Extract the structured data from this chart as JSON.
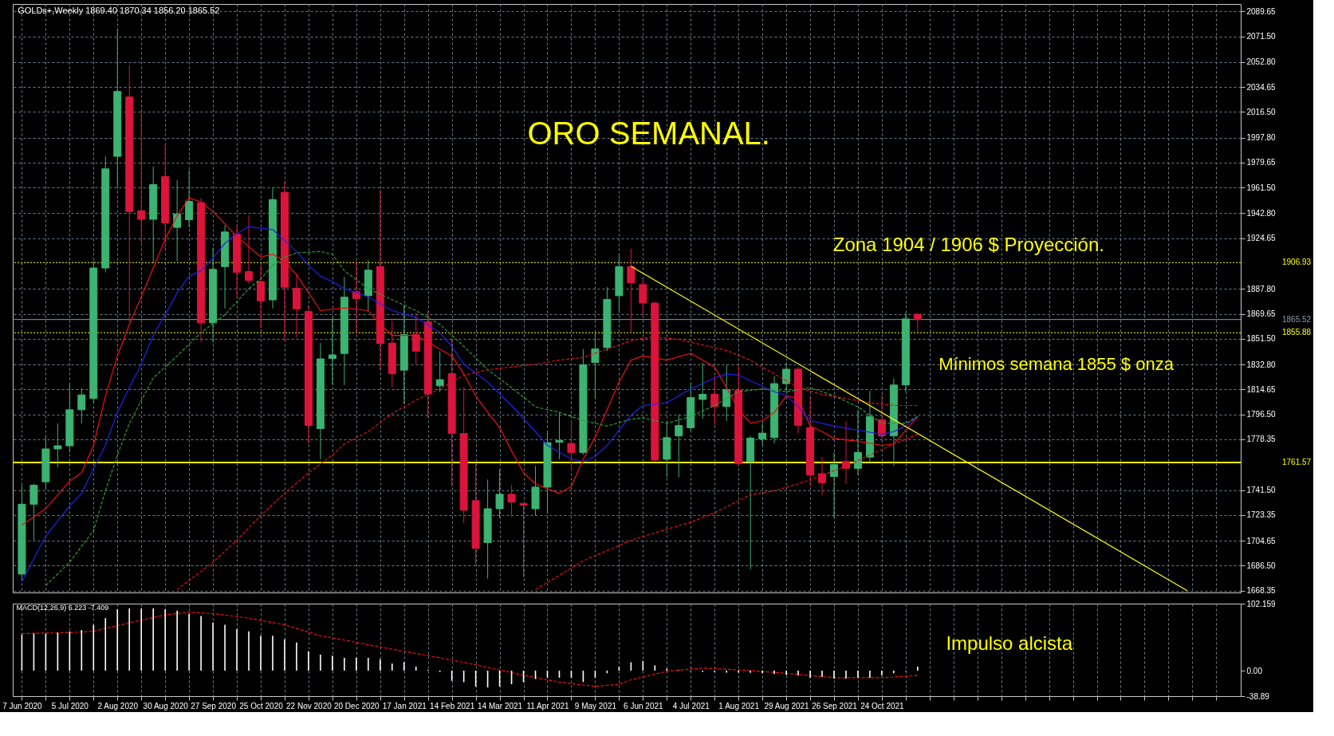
{
  "chart_data": [
    {
      "type": "candlestick",
      "title": "ORO SEMANAL.",
      "annotations": [
        "GOLDs+,Weekly  1869.40 1870.34 1856.20 1865.52",
        "Zona 1904 / 1906  $ Proyección.",
        "Mínimos semana 1855 $ onza"
      ],
      "x": [
        "2020-06-07",
        "2020-06-14",
        "2020-06-21",
        "2020-06-28",
        "2020-07-05",
        "2020-07-12",
        "2020-07-19",
        "2020-07-26",
        "2020-08-02",
        "2020-08-09",
        "2020-08-16",
        "2020-08-23",
        "2020-08-30",
        "2020-09-06",
        "2020-09-13",
        "2020-09-20",
        "2020-09-27",
        "2020-10-04",
        "2020-10-11",
        "2020-10-18",
        "2020-10-25",
        "2020-11-01",
        "2020-11-08",
        "2020-11-15",
        "2020-11-22",
        "2020-11-29",
        "2020-12-06",
        "2020-12-13",
        "2020-12-20",
        "2020-12-27",
        "2021-01-03",
        "2021-01-10",
        "2021-01-17",
        "2021-01-24",
        "2021-01-31",
        "2021-02-07",
        "2021-02-14",
        "2021-02-21",
        "2021-02-28",
        "2021-03-07",
        "2021-03-14",
        "2021-03-21",
        "2021-03-28",
        "2021-04-04",
        "2021-04-11",
        "2021-04-18",
        "2021-04-25",
        "2021-05-02",
        "2021-05-09",
        "2021-05-16",
        "2021-05-23",
        "2021-05-30",
        "2021-06-06",
        "2021-06-13",
        "2021-06-20",
        "2021-06-27",
        "2021-07-04",
        "2021-07-11",
        "2021-07-18",
        "2021-07-25",
        "2021-08-01",
        "2021-08-08",
        "2021-08-15",
        "2021-08-22",
        "2021-08-29",
        "2021-09-05",
        "2021-09-12",
        "2021-09-19",
        "2021-09-26",
        "2021-10-03",
        "2021-10-10",
        "2021-10-17",
        "2021-10-24",
        "2021-10-31",
        "2021-11-07",
        "2021-11-14"
      ],
      "ohlc": [
        [
          1680.4,
          1745.0,
          1675.5,
          1731.2
        ],
        [
          1731.2,
          1746.0,
          1705.0,
          1745.0
        ],
        [
          1747.5,
          1780.0,
          1742.6,
          1771.4
        ],
        [
          1771.4,
          1790.0,
          1758.0,
          1773.7
        ],
        [
          1773.7,
          1818.9,
          1768.8,
          1799.9
        ],
        [
          1799.9,
          1815.6,
          1790.0,
          1810.7
        ],
        [
          1808.0,
          1908.0,
          1805.0,
          1903.0
        ],
        [
          1903.0,
          1984.2,
          1899.8,
          1975.1
        ],
        [
          1984.2,
          2076.5,
          1962.0,
          2031.4
        ],
        [
          2027.4,
          2050.4,
          1863.8,
          1944.0
        ],
        [
          1944.6,
          2016.6,
          1921.0,
          1938.4
        ],
        [
          1938.4,
          1976.7,
          1906.3,
          1963.6
        ],
        [
          1969.5,
          1993.1,
          1916.0,
          1935.8
        ],
        [
          1932.5,
          1966.9,
          1907.9,
          1942.3
        ],
        [
          1938.1,
          1974.1,
          1932.5,
          1951.5
        ],
        [
          1950.5,
          1953.8,
          1849.0,
          1863.1
        ],
        [
          1863.1,
          1917.8,
          1849.0,
          1902.0
        ],
        [
          1904.0,
          1934.1,
          1873.6,
          1929.2
        ],
        [
          1927.6,
          1934.1,
          1881.8,
          1899.8
        ],
        [
          1900.4,
          1941.3,
          1891.6,
          1893.9
        ],
        [
          1893.2,
          1904.7,
          1858.8,
          1879.1
        ],
        [
          1879.8,
          1961.0,
          1873.6,
          1952.8
        ],
        [
          1958.0,
          1965.9,
          1850.7,
          1889.0
        ],
        [
          1888.3,
          1899.1,
          1852.3,
          1873.3
        ],
        [
          1871.3,
          1875.9,
          1775.4,
          1788.4
        ],
        [
          1786.2,
          1848.4,
          1763.9,
          1836.9
        ],
        [
          1837.2,
          1867.0,
          1817.9,
          1839.8
        ],
        [
          1840.8,
          1896.5,
          1817.9,
          1881.8
        ],
        [
          1885.7,
          1907.9,
          1855.6,
          1880.8
        ],
        [
          1882.8,
          1908.6,
          1871.9,
          1901.4
        ],
        [
          1904.0,
          1959.7,
          1828.7,
          1848.0
        ],
        [
          1848.4,
          1864.4,
          1816.3,
          1826.1
        ],
        [
          1828.7,
          1875.9,
          1804.2,
          1854.6
        ],
        [
          1854.6,
          1870.3,
          1832.6,
          1842.5
        ],
        [
          1863.8,
          1871.9,
          1794.0,
          1811.4
        ],
        [
          1817.3,
          1842.5,
          1813.0,
          1821.8
        ],
        [
          1826.1,
          1852.3,
          1744.3,
          1782.6
        ],
        [
          1782.6,
          1816.3,
          1717.4,
          1726.9
        ],
        [
          1733.8,
          1760.6,
          1687.0,
          1699.1
        ],
        [
          1703.3,
          1749.2,
          1677.1,
          1727.9
        ],
        [
          1727.9,
          1756.4,
          1721.3,
          1738.4
        ],
        [
          1738.4,
          1745.2,
          1722.0,
          1732.8
        ],
        [
          1731.8,
          1731.8,
          1678.0,
          1730.5
        ],
        [
          1727.9,
          1759.0,
          1723.0,
          1743.6
        ],
        [
          1743.6,
          1784.2,
          1724.6,
          1776.0
        ],
        [
          1776.3,
          1798.3,
          1763.9,
          1777.6
        ],
        [
          1775.4,
          1790.1,
          1755.7,
          1768.8
        ],
        [
          1768.8,
          1844.1,
          1767.2,
          1832.6
        ],
        [
          1834.3,
          1855.6,
          1808.1,
          1844.1
        ],
        [
          1845.1,
          1889.0,
          1842.5,
          1880.1
        ],
        [
          1882.8,
          1912.9,
          1871.9,
          1904.0
        ],
        [
          1904.0,
          1917.1,
          1855.6,
          1892.2
        ],
        [
          1890.9,
          1894.8,
          1868.7,
          1877.5
        ],
        [
          1877.5,
          1878.5,
          1762.3,
          1763.3
        ],
        [
          1763.9,
          1791.7,
          1750.8,
          1779.6
        ],
        [
          1780.9,
          1796.6,
          1750.8,
          1788.4
        ],
        [
          1786.8,
          1819.6,
          1784.2,
          1808.7
        ],
        [
          1807.4,
          1834.3,
          1793.4,
          1811.1
        ],
        [
          1811.1,
          1824.5,
          1788.4,
          1802.2
        ],
        [
          1802.2,
          1832.6,
          1791.7,
          1814.6
        ],
        [
          1814.0,
          1832.6,
          1759.0,
          1760.6
        ],
        [
          1762.2,
          1780.9,
          1683.7,
          1779.3
        ],
        [
          1778.6,
          1790.1,
          1773.7,
          1782.9
        ],
        [
          1779.6,
          1824.5,
          1775.4,
          1818.9
        ],
        [
          1818.9,
          1834.3,
          1813.0,
          1829.4
        ],
        [
          1829.4,
          1831.0,
          1782.6,
          1788.4
        ],
        [
          1786.8,
          1809.7,
          1744.3,
          1752.4
        ],
        [
          1753.4,
          1765.5,
          1737.7,
          1746.9
        ],
        [
          1751.4,
          1768.8,
          1721.3,
          1760.0
        ],
        [
          1762.3,
          1791.7,
          1745.9,
          1757.3
        ],
        [
          1757.3,
          1799.9,
          1752.4,
          1768.8
        ],
        [
          1765.5,
          1813.7,
          1760.6,
          1795.0
        ],
        [
          1792.7,
          1810.4,
          1778.6,
          1780.9
        ],
        [
          1780.9,
          1822.8,
          1759.0,
          1817.9
        ],
        [
          1817.9,
          1870.3,
          1813.0,
          1866.0
        ],
        [
          1869.4,
          1870.34,
          1856.2,
          1865.52
        ]
      ],
      "colors": [
        "#3cb371",
        "#3cb371",
        "#3cb371",
        "#3cb371",
        "#3cb371",
        "#3cb371",
        "#3cb371",
        "#3cb371",
        "#3cb371",
        "#dc143c",
        "#dc143c",
        "#3cb371",
        "#dc143c",
        "#3cb371",
        "#3cb371",
        "#dc143c",
        "#3cb371",
        "#3cb371",
        "#dc143c",
        "#dc143c",
        "#dc143c",
        "#3cb371",
        "#dc143c",
        "#dc143c",
        "#dc143c",
        "#3cb371",
        "#3cb371",
        "#3cb371",
        "#dc143c",
        "#3cb371",
        "#dc143c",
        "#dc143c",
        "#3cb371",
        "#dc143c",
        "#dc143c",
        "#3cb371",
        "#dc143c",
        "#dc143c",
        "#dc143c",
        "#3cb371",
        "#3cb371",
        "#dc143c",
        "#dc143c",
        "#3cb371",
        "#3cb371",
        "#3cb371",
        "#dc143c",
        "#3cb371",
        "#3cb371",
        "#3cb371",
        "#3cb371",
        "#dc143c",
        "#dc143c",
        "#dc143c",
        "#3cb371",
        "#3cb371",
        "#3cb371",
        "#3cb371",
        "#dc143c",
        "#3cb371",
        "#dc143c",
        "#3cb371",
        "#3cb371",
        "#3cb371",
        "#3cb371",
        "#dc143c",
        "#dc143c",
        "#dc143c",
        "#3cb371",
        "#dc143c",
        "#3cb371",
        "#3cb371",
        "#dc143c",
        "#3cb371",
        "#3cb371",
        "#dc143c"
      ],
      "series": [
        {
          "type": "line",
          "color": "#ee1111",
          "line_style": "solid",
          "x": [
            "2020-06-07",
            "2020-06-21",
            "2020-07-05",
            "2020-07-12",
            "2020-07-19",
            "2020-07-26",
            "2020-08-02",
            "2020-08-09",
            "2020-08-16",
            "2020-08-23",
            "2020-08-30",
            "2020-09-06",
            "2020-09-13",
            "2020-09-20",
            "2020-09-27",
            "2020-10-11",
            "2020-10-25",
            "2020-11-01",
            "2020-11-08",
            "2020-11-15",
            "2020-11-22",
            "2020-11-29",
            "2020-12-13",
            "2020-12-27",
            "2021-01-03",
            "2021-01-10",
            "2021-01-24",
            "2021-01-31",
            "2021-02-14",
            "2021-02-21",
            "2021-02-28",
            "2021-03-07",
            "2021-03-14",
            "2021-03-21",
            "2021-03-28",
            "2021-04-04",
            "2021-04-18",
            "2021-04-25",
            "2021-05-02",
            "2021-05-09",
            "2021-05-16",
            "2021-05-23",
            "2021-05-30",
            "2021-06-06",
            "2021-06-20",
            "2021-07-04",
            "2021-07-18",
            "2021-07-25",
            "2021-08-01",
            "2021-08-08",
            "2021-08-15",
            "2021-08-22",
            "2021-08-29",
            "2021-09-05",
            "2021-09-12",
            "2021-09-19",
            "2021-09-26",
            "2021-10-10",
            "2021-10-24",
            "2021-10-31",
            "2021-11-07",
            "2021-11-14"
          ],
          "values": [
            1716,
            1728,
            1748,
            1754,
            1774,
            1810,
            1839,
            1862,
            1882,
            1903,
            1924,
            1941,
            1954,
            1951,
            1944,
            1926,
            1911,
            1913,
            1908,
            1898,
            1885,
            1872,
            1874,
            1872,
            1862,
            1854,
            1854,
            1849,
            1839,
            1826,
            1810,
            1798,
            1787,
            1770,
            1754,
            1746,
            1739,
            1744,
            1764,
            1780,
            1800,
            1820,
            1836,
            1839,
            1836,
            1841,
            1831,
            1816,
            1800,
            1790,
            1792,
            1798,
            1810,
            1808,
            1788,
            1784,
            1779,
            1777,
            1774,
            1775,
            1785,
            1795
          ]
        },
        {
          "type": "line",
          "color": "#2222ee",
          "line_style": "solid",
          "x": [
            "2020-06-07",
            "2020-06-21",
            "2020-07-05",
            "2020-07-12",
            "2020-07-19",
            "2020-07-26",
            "2020-08-02",
            "2020-08-09",
            "2020-08-16",
            "2020-08-23",
            "2020-08-30",
            "2020-09-06",
            "2020-09-13",
            "2020-09-20",
            "2020-09-27",
            "2020-10-04",
            "2020-10-11",
            "2020-10-18",
            "2020-11-01",
            "2020-11-08",
            "2020-11-15",
            "2020-11-22",
            "2020-11-29",
            "2020-12-06",
            "2020-12-13",
            "2020-12-27",
            "2021-01-10",
            "2021-01-24",
            "2021-02-07",
            "2021-02-14",
            "2021-02-21",
            "2021-03-07",
            "2021-03-21",
            "2021-04-04",
            "2021-04-11",
            "2021-04-25",
            "2021-05-02",
            "2021-05-09",
            "2021-05-16",
            "2021-05-23",
            "2021-05-30",
            "2021-06-06",
            "2021-06-20",
            "2021-07-04",
            "2021-07-18",
            "2021-07-25",
            "2021-08-01",
            "2021-08-08",
            "2021-08-22",
            "2021-08-29",
            "2021-09-05",
            "2021-09-12",
            "2021-09-26",
            "2021-10-10",
            "2021-10-24",
            "2021-10-31",
            "2021-11-07",
            "2021-11-14"
          ],
          "values": [
            1675,
            1708,
            1730,
            1739,
            1757,
            1774,
            1798,
            1816,
            1833,
            1854,
            1869,
            1885,
            1897,
            1901,
            1910,
            1921,
            1928,
            1933,
            1931,
            1923,
            1915,
            1905,
            1897,
            1893,
            1888,
            1882,
            1872,
            1867,
            1856,
            1846,
            1833,
            1820,
            1803,
            1784,
            1774,
            1764,
            1762,
            1766,
            1774,
            1785,
            1796,
            1803,
            1805,
            1815,
            1823,
            1826,
            1825,
            1821,
            1813,
            1810,
            1802,
            1792,
            1788,
            1785,
            1782,
            1784,
            1788,
            1795
          ]
        },
        {
          "type": "line",
          "color": "#2e9e2e",
          "line_style": "dashed",
          "x": [
            "2020-06-21",
            "2020-07-05",
            "2020-07-19",
            "2020-07-26",
            "2020-08-02",
            "2020-08-09",
            "2020-08-23",
            "2020-09-06",
            "2020-09-20",
            "2020-10-04",
            "2020-10-18",
            "2020-10-25",
            "2020-11-01",
            "2020-11-08",
            "2020-11-15",
            "2020-11-29",
            "2020-12-06",
            "2020-12-13",
            "2020-12-27",
            "2021-01-10",
            "2021-01-24",
            "2021-02-07",
            "2021-02-21",
            "2021-03-07",
            "2021-03-21",
            "2021-04-04",
            "2021-04-18",
            "2021-05-02",
            "2021-05-16",
            "2021-05-30",
            "2021-06-06",
            "2021-06-20",
            "2021-07-04",
            "2021-07-18",
            "2021-08-01",
            "2021-08-15",
            "2021-08-29",
            "2021-09-12",
            "2021-09-26",
            "2021-10-10",
            "2021-10-24",
            "2021-11-07",
            "2021-11-14"
          ],
          "values": [
            1672,
            1689,
            1712,
            1741,
            1767,
            1790,
            1823,
            1839,
            1856,
            1869,
            1888,
            1895,
            1905,
            1911,
            1914,
            1915,
            1913,
            1901,
            1888,
            1880,
            1872,
            1862,
            1846,
            1829,
            1816,
            1802,
            1798,
            1792,
            1788,
            1793,
            1794,
            1790,
            1795,
            1803,
            1813,
            1815,
            1813,
            1816,
            1810,
            1802,
            1790,
            1790,
            1795
          ]
        },
        {
          "type": "line",
          "color": "#dd1111",
          "line_style": "dashed",
          "x": [
            "2020-09-06",
            "2020-09-27",
            "2020-10-11",
            "2020-10-25",
            "2020-11-08",
            "2020-11-22",
            "2020-12-06",
            "2020-12-13",
            "2020-12-27",
            "2021-01-10",
            "2021-01-24",
            "2021-02-07",
            "2021-02-21",
            "2021-03-07",
            "2021-03-21",
            "2021-04-04",
            "2021-04-18",
            "2021-05-02",
            "2021-05-16",
            "2021-05-30",
            "2021-06-06",
            "2021-06-13",
            "2021-06-27",
            "2021-07-11",
            "2021-07-25",
            "2021-08-08",
            "2021-08-22",
            "2021-09-05",
            "2021-09-19",
            "2021-10-03",
            "2021-10-17",
            "2021-10-31",
            "2021-11-14"
          ],
          "values": [
            1669,
            1689,
            1705,
            1723,
            1739,
            1754,
            1767,
            1775,
            1784,
            1797,
            1807,
            1815,
            1825,
            1829,
            1831,
            1833,
            1836,
            1838,
            1844,
            1850,
            1852,
            1853,
            1851,
            1847,
            1843,
            1836,
            1826,
            1816,
            1811,
            1808,
            1805,
            1803,
            1803
          ]
        },
        {
          "type": "line",
          "color": "#dd1111",
          "line_style": "dashed",
          "x": [
            "2021-04-04",
            "2021-05-02",
            "2021-05-30",
            "2021-06-20",
            "2021-07-04",
            "2021-07-18",
            "2021-08-08",
            "2021-08-22",
            "2021-09-05",
            "2021-09-19",
            "2021-10-03",
            "2021-10-17",
            "2021-10-31",
            "2021-11-14"
          ],
          "values": [
            1669,
            1690,
            1705,
            1713,
            1718,
            1725,
            1738,
            1741,
            1746,
            1752,
            1759,
            1767,
            1775,
            1782
          ]
        },
        {
          "type": "line",
          "color": "#ffff00",
          "line_style": "solid",
          "x": [
            "2021-05-30",
            "2022-04-21"
          ],
          "values": [
            1904.2,
            1668.35
          ]
        }
      ],
      "ref_lines": [
        {
          "axis": "y",
          "value": 1906.93,
          "label": "1906.93",
          "color": "#ffff00",
          "line_style": "dotted"
        },
        {
          "axis": "y",
          "value": 1865.52,
          "label": "1865.52",
          "color": "#8c9ca8",
          "line_style": "solid"
        },
        {
          "axis": "y",
          "value": 1855.88,
          "label": "1855.88",
          "color": "#ffff00",
          "line_style": "dotted"
        },
        {
          "axis": "y",
          "value": 1761.57,
          "label": "1761.57",
          "color": "#ffff00",
          "line_style": "solid"
        }
      ],
      "xlim": [
        "2020-06-04",
        "2022-05-20"
      ],
      "ylim": [
        1667,
        2095
      ],
      "xticks": [
        {
          "value": "2020-06-07",
          "label": null
        },
        {
          "value": "2020-06-21",
          "label": null
        },
        {
          "value": "2020-07-05",
          "label": null
        },
        {
          "value": "2020-07-19",
          "label": null
        },
        {
          "value": "2020-08-02",
          "label": null
        },
        {
          "value": "2020-08-16",
          "label": null
        },
        {
          "value": "2020-08-30",
          "label": null
        },
        {
          "value": "2020-09-13",
          "label": null
        },
        {
          "value": "2020-09-27",
          "label": null
        },
        {
          "value": "2020-10-11",
          "label": null
        },
        {
          "value": "2020-10-25",
          "label": null
        },
        {
          "value": "2020-11-08",
          "label": null
        },
        {
          "value": "2020-11-22",
          "label": null
        },
        {
          "value": "2020-12-06",
          "label": null
        },
        {
          "value": "2020-12-20",
          "label": null
        },
        {
          "value": "2021-01-03",
          "label": null
        },
        {
          "value": "2021-01-17",
          "label": null
        },
        {
          "value": "2021-01-31",
          "label": null
        },
        {
          "value": "2021-02-14",
          "label": null
        },
        {
          "value": "2021-02-28",
          "label": null
        },
        {
          "value": "2021-03-14",
          "label": null
        },
        {
          "value": "2021-03-28",
          "label": null
        },
        {
          "value": "2021-04-11",
          "label": null
        },
        {
          "value": "2021-04-25",
          "label": null
        },
        {
          "value": "2021-05-09",
          "label": null
        },
        {
          "value": "2021-05-23",
          "label": null
        },
        {
          "value": "2021-06-06",
          "label": null
        },
        {
          "value": "2021-06-20",
          "label": null
        },
        {
          "value": "2021-07-04",
          "label": null
        },
        {
          "value": "2021-07-18",
          "label": null
        },
        {
          "value": "2021-08-01",
          "label": null
        },
        {
          "value": "2021-08-15",
          "label": null
        },
        {
          "value": "2021-08-29",
          "label": null
        },
        {
          "value": "2021-09-12",
          "label": null
        },
        {
          "value": "2021-09-26",
          "label": null
        },
        {
          "value": "2021-10-10",
          "label": null
        },
        {
          "value": "2021-10-24",
          "label": null
        },
        {
          "value": "2021-11-07",
          "label": null
        },
        {
          "value": "2021-11-21",
          "label": null
        },
        {
          "value": "2021-12-05",
          "label": null
        },
        {
          "value": "2021-12-19",
          "label": null
        },
        {
          "value": "2022-01-02",
          "label": null
        },
        {
          "value": "2022-01-16",
          "label": null
        },
        {
          "value": "2022-01-30",
          "label": null
        },
        {
          "value": "2022-02-13",
          "label": null
        },
        {
          "value": "2022-02-27",
          "label": null
        },
        {
          "value": "2022-03-13",
          "label": null
        },
        {
          "value": "2022-03-27",
          "label": null
        },
        {
          "value": "2022-04-10",
          "label": null
        },
        {
          "value": "2022-04-24",
          "label": null
        },
        {
          "value": "2022-05-08",
          "label": null
        }
      ],
      "yticks": [
        {
          "value": 2089.65,
          "label": "2089.65"
        },
        {
          "value": 2071.5,
          "label": "2071.50"
        },
        {
          "value": 2052.8,
          "label": "2052.80"
        },
        {
          "value": 2034.65,
          "label": "2034.65"
        },
        {
          "value": 2016.5,
          "label": "2016.50"
        },
        {
          "value": 1997.8,
          "label": "1997.80"
        },
        {
          "value": 1979.65,
          "label": "1979.65"
        },
        {
          "value": 1961.5,
          "label": "1961.50"
        },
        {
          "value": 1942.8,
          "label": "1942.80"
        },
        {
          "value": 1924.65,
          "label": "1924.65"
        },
        {
          "value": 1887.8,
          "label": "1887.80"
        },
        {
          "value": 1869.65,
          "label": "1869.65"
        },
        {
          "value": 1851.5,
          "label": "1851.50"
        },
        {
          "value": 1832.8,
          "label": "1832.80"
        },
        {
          "value": 1814.65,
          "label": "1814.65"
        },
        {
          "value": 1796.5,
          "label": "1796.50"
        },
        {
          "value": 1778.35,
          "label": "1778.35"
        },
        {
          "value": 1741.5,
          "label": "1741.50"
        },
        {
          "value": 1723.35,
          "label": "1723.35"
        },
        {
          "value": 1704.65,
          "label": "1704.65"
        },
        {
          "value": 1686.5,
          "label": "1686.50"
        },
        {
          "value": 1668.35,
          "label": "1668.35"
        }
      ],
      "grid": true,
      "tick_labels": "y"
    },
    {
      "type": "bar",
      "annotations": [
        "MACD(12,26,9) 6.223 -7.409",
        "Impulso alcista"
      ],
      "x": [
        "2020-06-07",
        "2020-06-14",
        "2020-06-21",
        "2020-06-28",
        "2020-07-05",
        "2020-07-12",
        "2020-07-19",
        "2020-07-26",
        "2020-08-02",
        "2020-08-09",
        "2020-08-16",
        "2020-08-23",
        "2020-08-30",
        "2020-09-06",
        "2020-09-13",
        "2020-09-20",
        "2020-09-27",
        "2020-10-04",
        "2020-10-11",
        "2020-10-18",
        "2020-10-25",
        "2020-11-01",
        "2020-11-08",
        "2020-11-15",
        "2020-11-22",
        "2020-11-29",
        "2020-12-06",
        "2020-12-13",
        "2020-12-20",
        "2020-12-27",
        "2021-01-03",
        "2021-01-10",
        "2021-01-17",
        "2021-01-24",
        "2021-01-31",
        "2021-02-07",
        "2021-02-14",
        "2021-02-21",
        "2021-02-28",
        "2021-03-07",
        "2021-03-14",
        "2021-03-21",
        "2021-03-28",
        "2021-04-04",
        "2021-04-11",
        "2021-04-18",
        "2021-04-25",
        "2021-05-02",
        "2021-05-09",
        "2021-05-16",
        "2021-05-23",
        "2021-05-30",
        "2021-06-06",
        "2021-06-13",
        "2021-06-20",
        "2021-06-27",
        "2021-07-04",
        "2021-07-11",
        "2021-07-18",
        "2021-07-25",
        "2021-08-01",
        "2021-08-08",
        "2021-08-15",
        "2021-08-22",
        "2021-08-29",
        "2021-09-05",
        "2021-09-12",
        "2021-09-19",
        "2021-09-26",
        "2021-10-03",
        "2021-10-10",
        "2021-10-17",
        "2021-10-24",
        "2021-10-31",
        "2021-11-07",
        "2021-11-14"
      ],
      "series": [
        {
          "color": "#ffffff",
          "values": [
            55,
            56.5,
            56.5,
            57.8,
            59.8,
            61.9,
            69.9,
            80,
            93.5,
            94.8,
            94.8,
            94.8,
            93.5,
            91.4,
            86.7,
            83.4,
            73.3,
            69.9,
            63.2,
            59.8,
            53.1,
            53.1,
            47.7,
            43,
            29.6,
            24.2,
            22.9,
            19.5,
            19.5,
            19.5,
            17.5,
            10.8,
            12.8,
            6,
            1.3,
            -2,
            -15.5,
            -17.5,
            -24.2,
            -25.5,
            -24.2,
            -20.8,
            -17.5,
            -12.8,
            -10.8,
            -10.8,
            -10.8,
            -17.5,
            -10.8,
            -4,
            6,
            12.8,
            14.8,
            8,
            3,
            1,
            -1,
            -2,
            -2,
            -3,
            -3,
            -3.4,
            -4,
            -5,
            -6.7,
            -7.4,
            -10.8,
            -9.4,
            -12.1,
            -12.1,
            -10.8,
            -10.8,
            -7.4,
            -4,
            -1,
            6.223
          ]
        },
        {
          "type": "line",
          "color": "#ee1111",
          "line_style": "dashed",
          "x": [
            "2020-06-07",
            "2020-07-05",
            "2020-07-19",
            "2020-08-09",
            "2020-08-30",
            "2020-09-13",
            "2020-09-27",
            "2020-10-18",
            "2020-11-08",
            "2020-11-29",
            "2020-12-06",
            "2021-01-03",
            "2021-01-31",
            "2021-02-28",
            "2021-03-28",
            "2021-04-18",
            "2021-05-09",
            "2021-05-23",
            "2021-05-30",
            "2021-06-20",
            "2021-07-11",
            "2021-08-08",
            "2021-08-29",
            "2021-09-26",
            "2021-10-24",
            "2021-11-14"
          ],
          "values": [
            56.5,
            58,
            60,
            73,
            85,
            89,
            87,
            80,
            70,
            53,
            50,
            36,
            23,
            9,
            -7,
            -17.5,
            -24,
            -21,
            -14,
            -1,
            4,
            0,
            -4,
            -10.8,
            -10.8,
            -7.409
          ]
        }
      ],
      "xlim": [
        "2020-06-04",
        "2022-05-20"
      ],
      "ylim": [
        -38.89,
        102.159
      ],
      "xticks": [
        {
          "value": "2020-06-07",
          "label": "7 Jun 2020"
        },
        {
          "value": "2020-06-21",
          "label": null
        },
        {
          "value": "2020-07-05",
          "label": "5 Jul 2020"
        },
        {
          "value": "2020-07-19",
          "label": null
        },
        {
          "value": "2020-08-02",
          "label": "2 Aug 2020"
        },
        {
          "value": "2020-08-16",
          "label": null
        },
        {
          "value": "2020-08-30",
          "label": "30 Aug 2020"
        },
        {
          "value": "2020-09-13",
          "label": null
        },
        {
          "value": "2020-09-27",
          "label": "27 Sep 2020"
        },
        {
          "value": "2020-10-11",
          "label": null
        },
        {
          "value": "2020-10-25",
          "label": "25 Oct 2020"
        },
        {
          "value": "2020-11-08",
          "label": null
        },
        {
          "value": "2020-11-22",
          "label": "22 Nov 2020"
        },
        {
          "value": "2020-12-06",
          "label": null
        },
        {
          "value": "2020-12-20",
          "label": "20 Dec 2020"
        },
        {
          "value": "2021-01-03",
          "label": null
        },
        {
          "value": "2021-01-17",
          "label": "17 Jan 2021"
        },
        {
          "value": "2021-01-31",
          "label": null
        },
        {
          "value": "2021-02-14",
          "label": "14 Feb 2021"
        },
        {
          "value": "2021-02-28",
          "label": null
        },
        {
          "value": "2021-03-14",
          "label": "14 Mar 2021"
        },
        {
          "value": "2021-03-28",
          "label": null
        },
        {
          "value": "2021-04-11",
          "label": "11 Apr 2021"
        },
        {
          "value": "2021-04-25",
          "label": null
        },
        {
          "value": "2021-05-09",
          "label": "9 May 2021"
        },
        {
          "value": "2021-05-23",
          "label": null
        },
        {
          "value": "2021-06-06",
          "label": "6 Jun 2021"
        },
        {
          "value": "2021-06-20",
          "label": null
        },
        {
          "value": "2021-07-04",
          "label": "4 Jul 2021"
        },
        {
          "value": "2021-07-18",
          "label": null
        },
        {
          "value": "2021-08-01",
          "label": "1 Aug 2021"
        },
        {
          "value": "2021-08-15",
          "label": null
        },
        {
          "value": "2021-08-29",
          "label": "29 Aug 2021"
        },
        {
          "value": "2021-09-12",
          "label": null
        },
        {
          "value": "2021-09-26",
          "label": "26 Sep 2021"
        },
        {
          "value": "2021-10-10",
          "label": null
        },
        {
          "value": "2021-10-24",
          "label": "24 Oct 2021"
        },
        {
          "value": "2021-11-07",
          "label": null
        },
        {
          "value": "2021-11-21",
          "label": null
        },
        {
          "value": "2021-12-05",
          "label": null
        },
        {
          "value": "2021-12-19",
          "label": null
        },
        {
          "value": "2022-01-02",
          "label": null
        },
        {
          "value": "2022-01-16",
          "label": null
        },
        {
          "value": "2022-01-30",
          "label": null
        },
        {
          "value": "2022-02-13",
          "label": null
        },
        {
          "value": "2022-02-27",
          "label": null
        },
        {
          "value": "2022-03-13",
          "label": null
        },
        {
          "value": "2022-03-27",
          "label": null
        },
        {
          "value": "2022-04-10",
          "label": null
        },
        {
          "value": "2022-04-24",
          "label": null
        },
        {
          "value": "2022-05-08",
          "label": null
        }
      ],
      "yticks": [
        {
          "value": 102.159,
          "label": "102.159"
        },
        {
          "value": 0,
          "label": "0.00"
        },
        {
          "value": -38.89,
          "label": "-38.89"
        }
      ],
      "grid": "x"
    }
  ]
}
